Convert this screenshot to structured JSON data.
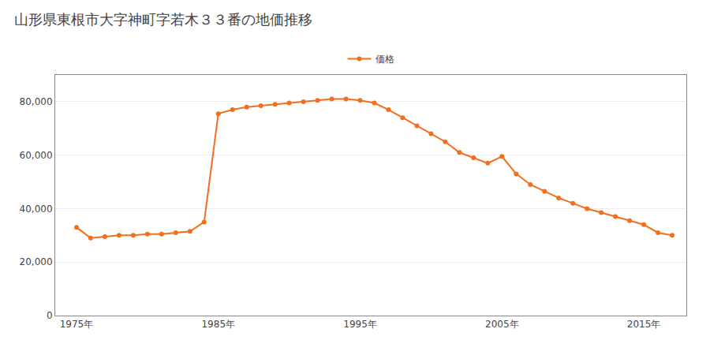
{
  "chart_data": {
    "type": "line",
    "title": "山形県東根市大字神町字若木３３番の地価推移",
    "x": [
      1975,
      1976,
      1977,
      1978,
      1979,
      1980,
      1981,
      1982,
      1983,
      1984,
      1985,
      1986,
      1987,
      1988,
      1989,
      1990,
      1991,
      1992,
      1993,
      1994,
      1995,
      1996,
      1997,
      1998,
      1999,
      2000,
      2001,
      2002,
      2003,
      2004,
      2005,
      2006,
      2007,
      2008,
      2009,
      2010,
      2011,
      2012,
      2013,
      2014,
      2015,
      2016,
      2017
    ],
    "series": [
      {
        "name": "価格",
        "color": "#f07020",
        "marker": "circle",
        "values": [
          33000,
          29000,
          29500,
          30000,
          30000,
          30500,
          30500,
          31000,
          31500,
          35000,
          75500,
          77000,
          78000,
          78500,
          79000,
          79500,
          80000,
          80500,
          81000,
          81000,
          80500,
          79500,
          77000,
          74000,
          71000,
          68000,
          65000,
          61000,
          59000,
          57000,
          59500,
          53000,
          49000,
          46500,
          44000,
          42000,
          40000,
          38500,
          37000,
          35500,
          34000,
          31000,
          30000
        ]
      }
    ],
    "xlim": [
      1973.5,
      2018
    ],
    "xticks": [
      {
        "value": 1975,
        "label": "1975年"
      },
      {
        "value": 1985,
        "label": "1985年"
      },
      {
        "value": 1995,
        "label": "1995年"
      },
      {
        "value": 2005,
        "label": "2005年"
      },
      {
        "value": 2015,
        "label": "2015年"
      }
    ],
    "ylim": [
      0,
      90000
    ],
    "yticks": [
      0,
      {
        "value": 20000,
        "label": "20,000"
      },
      {
        "value": 40000,
        "label": "40,000"
      },
      {
        "value": 60000,
        "label": "60,000"
      },
      {
        "value": 80000,
        "label": "80,000"
      }
    ],
    "grid": true,
    "legend": "top"
  }
}
